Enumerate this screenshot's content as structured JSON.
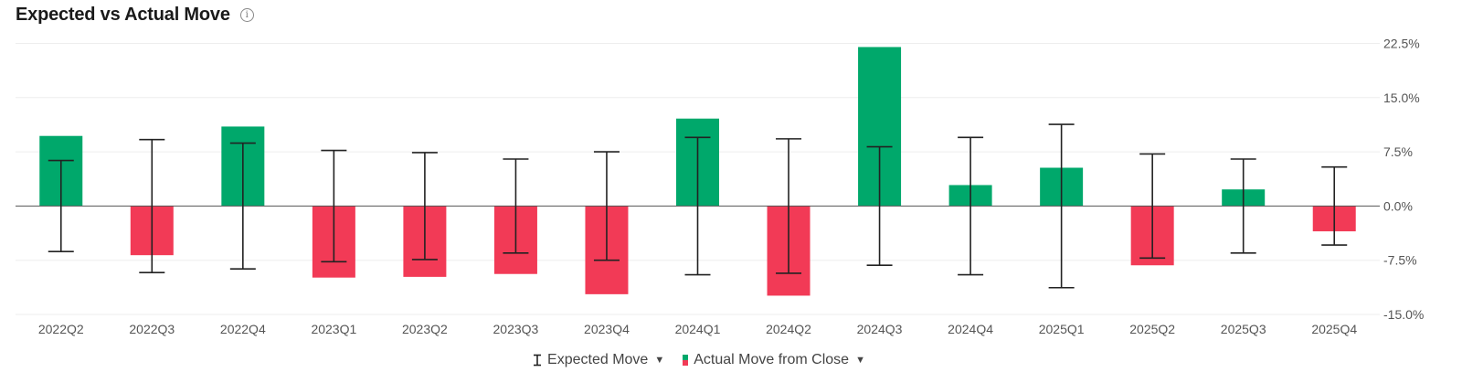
{
  "header": {
    "title": "Expected vs Actual Move",
    "info_icon": "info-icon"
  },
  "legend": {
    "expected_label": "Expected Move",
    "actual_label": "Actual Move from Close",
    "expected_icon": "i-beam-icon",
    "caret_icon": "caret-down-icon"
  },
  "colors": {
    "positive": "#00a86b",
    "negative": "#f23a56",
    "whisker": "#222222",
    "grid": "#eeeeee",
    "zero": "#555555"
  },
  "chart_data": {
    "type": "bar",
    "categories": [
      "2022Q2",
      "2022Q3",
      "2022Q4",
      "2023Q1",
      "2023Q2",
      "2023Q3",
      "2023Q4",
      "2024Q1",
      "2024Q2",
      "2024Q3",
      "2024Q4",
      "2025Q1",
      "2025Q2",
      "2025Q3",
      "2025Q4"
    ],
    "series": [
      {
        "name": "Actual Move from Close",
        "values": [
          9.7,
          -6.8,
          11.0,
          -9.9,
          -9.8,
          -9.4,
          -12.2,
          12.1,
          -12.4,
          22.0,
          2.9,
          5.3,
          -8.2,
          2.3,
          -3.5
        ]
      },
      {
        "name": "Expected Move",
        "values": [
          6.3,
          9.2,
          8.7,
          7.7,
          7.4,
          6.5,
          7.5,
          9.5,
          9.3,
          8.2,
          9.5,
          11.3,
          7.2,
          6.5,
          5.4
        ]
      }
    ],
    "y_unit": "%",
    "ylim": [
      -15,
      22.5
    ],
    "yticks": [
      "22.5%",
      "15.0%",
      "7.5%",
      "0.0%",
      "-7.5%",
      "-15.0%"
    ],
    "grid": true,
    "legend_position": "bottom-center"
  }
}
